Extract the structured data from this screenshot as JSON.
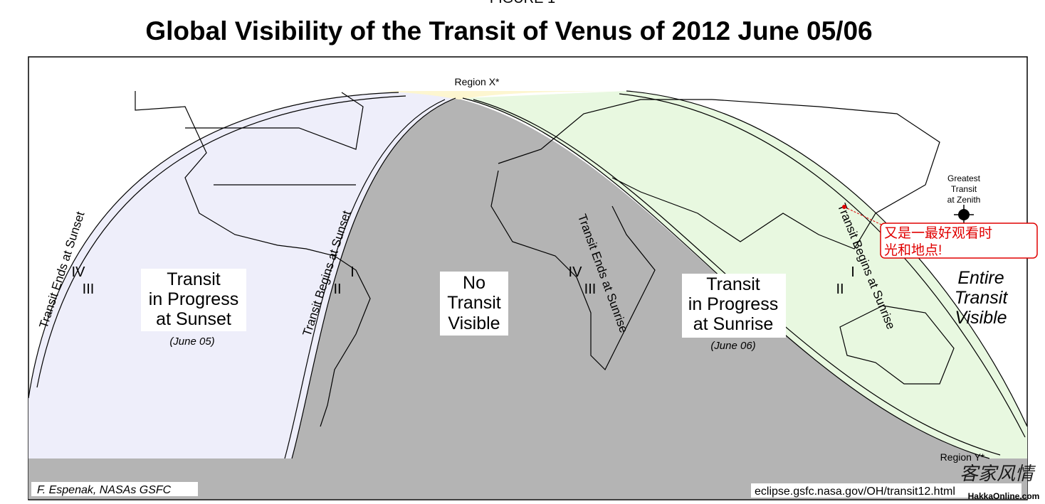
{
  "header": {
    "figure": "FIGURE 1",
    "title": "Global Visibility of the Transit of Venus of 2012 June 05/06"
  },
  "labels": {
    "region_x": "Region X*",
    "region_y": "Region Y*",
    "ends_sunset": "Transit Ends at Sunset",
    "begins_sunset": "Transit Begins at Sunset",
    "ends_sunrise": "Transit Ends at Sunrise",
    "begins_sunrise": "Transit Begins at Sunrise",
    "contacts": {
      "sunset_end": [
        "IV",
        "III"
      ],
      "sunset_begin": [
        "I",
        "II"
      ],
      "sunrise_end": [
        "IV",
        "III"
      ],
      "sunrise_begin": [
        "I",
        "II"
      ]
    },
    "progress_sunset": [
      "Transit",
      "in Progress",
      "at Sunset"
    ],
    "date_sunset": "(June 05)",
    "no_transit": [
      "No",
      "Transit",
      "Visible"
    ],
    "progress_sunrise": [
      "Transit",
      "in Progress",
      "at Sunrise"
    ],
    "date_sunrise": "(June 06)",
    "entire": [
      "Entire",
      "Transit",
      "Visible"
    ],
    "zenith": [
      "Greatest",
      "Transit",
      "at Zenith"
    ]
  },
  "annotation": [
    "又是一最好观看时",
    "光和地点!"
  ],
  "credit": "F. Espenak, NASAs GSFC",
  "url": "eclipse.gsfc.nasa.gov/OH/transit12.html",
  "watermark": {
    "calligraphy": "客家风情",
    "site": "HakkaOnline.com"
  }
}
